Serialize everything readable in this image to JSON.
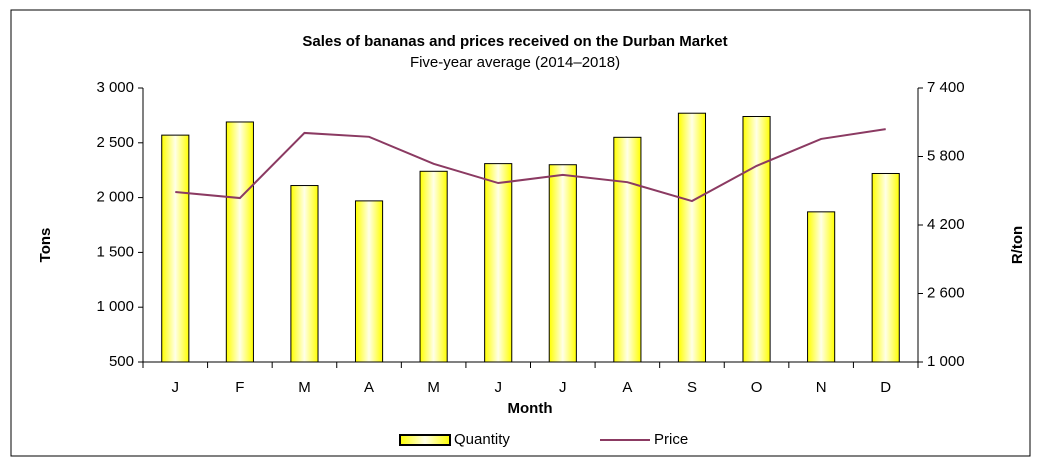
{
  "chart_data": {
    "type": "bar_line",
    "title": "Sales of bananas and prices received on the  Durban Market",
    "subtitle": "Five-year  average (2014–2018)",
    "x_label": "Month",
    "y_label": "Tons",
    "y2_label": "R/ton",
    "categories": [
      "J",
      "F",
      "M",
      "A",
      "M",
      "J",
      "J",
      "A",
      "S",
      "O",
      "N",
      "D"
    ],
    "series": [
      {
        "name": "Quantity",
        "type": "bar",
        "color": "#ffff00",
        "values": [
          2570,
          2690,
          2110,
          1970,
          2240,
          2310,
          2300,
          2550,
          2770,
          2740,
          1870,
          2220
        ]
      },
      {
        "name": "Price",
        "type": "line",
        "axis": "y2",
        "color": "#8b3a62",
        "values": [
          4970,
          4830,
          6350,
          6260,
          5630,
          5180,
          5370,
          5200,
          4760,
          5580,
          6210,
          6440
        ]
      }
    ],
    "ylim": [
      500,
      3000
    ],
    "yticks": [
      500,
      {
        "value": 1000,
        "label": "1 000"
      },
      {
        "value": 1500,
        "label": "1 500"
      },
      {
        "value": 2000,
        "label": "2 000"
      },
      {
        "value": 2500,
        "label": "2 500"
      },
      {
        "value": 3000,
        "label": "3 000"
      }
    ],
    "y2lim": [
      1000,
      7400
    ],
    "y2ticks": [
      {
        "value": 1000,
        "label": "1 000"
      },
      {
        "value": 2600,
        "label": "2 600"
      },
      {
        "value": 4200,
        "label": "4 200"
      },
      {
        "value": 5800,
        "label": "5 800"
      },
      {
        "value": 7400,
        "label": "7 400"
      }
    ],
    "legend": "bottom"
  }
}
